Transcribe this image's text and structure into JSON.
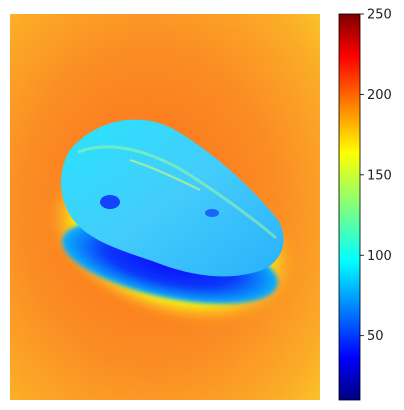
{
  "image": {
    "subject": "thermal-colormap-seed",
    "colormap": "jet",
    "background_level": 205,
    "object_level": 105,
    "shadow_level": 45
  },
  "colorbar": {
    "min": 10,
    "max": 250,
    "ticks": [
      {
        "value": 250,
        "label": "250"
      },
      {
        "value": 200,
        "label": "200"
      },
      {
        "value": 150,
        "label": "150"
      },
      {
        "value": 100,
        "label": "100"
      },
      {
        "value": 50,
        "label": "50"
      }
    ],
    "colors": {
      "c0": "#00007f",
      "c1": "#0000ff",
      "c2": "#007fff",
      "c3": "#00ffff",
      "c4": "#7fff7f",
      "c5": "#ffff00",
      "c6": "#ff7f00",
      "c7": "#ff0000",
      "c8": "#7f0000"
    }
  }
}
